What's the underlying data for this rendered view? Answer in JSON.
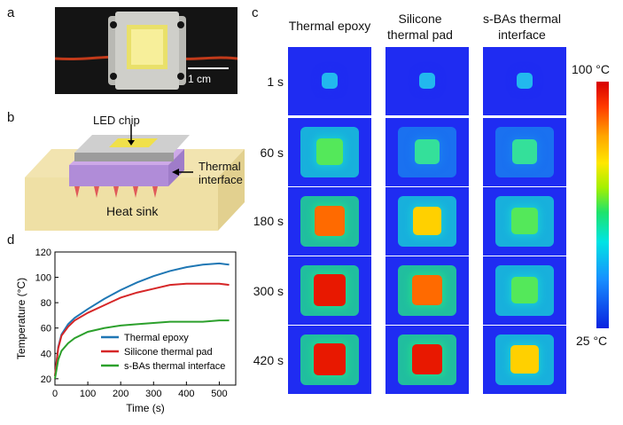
{
  "panel_labels": {
    "a": "a",
    "b": "b",
    "c": "c",
    "d": "d"
  },
  "panel_a": {
    "scale_bar": "1 cm"
  },
  "panel_b": {
    "led_chip": "LED chip",
    "thermal_interface": "Thermal\ninterface",
    "heat_sink": "Heat sink"
  },
  "panel_c": {
    "columns": [
      "Thermal epoxy",
      "Silicone\nthermal pad",
      "s-BAs thermal\ninterface"
    ],
    "rows": [
      "1 s",
      "60 s",
      "180 s",
      "300 s",
      "420 s"
    ],
    "colorbar": {
      "max_label": "100 °C",
      "min_label": "25 °C"
    }
  },
  "colors": {
    "epoxy": "#1f77b4",
    "silicone": "#d62728",
    "sbas": "#2ca02c"
  },
  "chart_data": {
    "type": "line",
    "xlabel": "Time (s)",
    "ylabel": "Temperature (°C)",
    "xlim": [
      0,
      550
    ],
    "ylim": [
      15,
      120
    ],
    "xticks": [
      0,
      100,
      200,
      300,
      400,
      500
    ],
    "yticks": [
      20,
      40,
      60,
      80,
      100,
      120
    ],
    "legend": "lower-right",
    "series": [
      {
        "name": "Thermal epoxy",
        "color": "#1f77b4",
        "x": [
          0,
          10,
          20,
          40,
          60,
          100,
          150,
          200,
          250,
          300,
          350,
          400,
          450,
          500,
          530
        ],
        "y": [
          22,
          45,
          55,
          63,
          68,
          75,
          83,
          90,
          96,
          101,
          105,
          108,
          110,
          111,
          110
        ]
      },
      {
        "name": "Silicone thermal pad",
        "color": "#d62728",
        "x": [
          0,
          10,
          20,
          40,
          60,
          100,
          150,
          200,
          250,
          300,
          350,
          400,
          450,
          500,
          530
        ],
        "y": [
          22,
          44,
          54,
          61,
          66,
          72,
          78,
          84,
          88,
          91,
          94,
          95,
          95,
          95,
          94
        ]
      },
      {
        "name": "s-BAs thermal interface",
        "color": "#2ca02c",
        "x": [
          0,
          10,
          20,
          40,
          60,
          100,
          150,
          200,
          250,
          300,
          350,
          400,
          450,
          500,
          530
        ],
        "y": [
          20,
          35,
          42,
          48,
          52,
          57,
          60,
          62,
          63,
          64,
          65,
          65,
          65,
          66,
          66
        ]
      }
    ]
  }
}
